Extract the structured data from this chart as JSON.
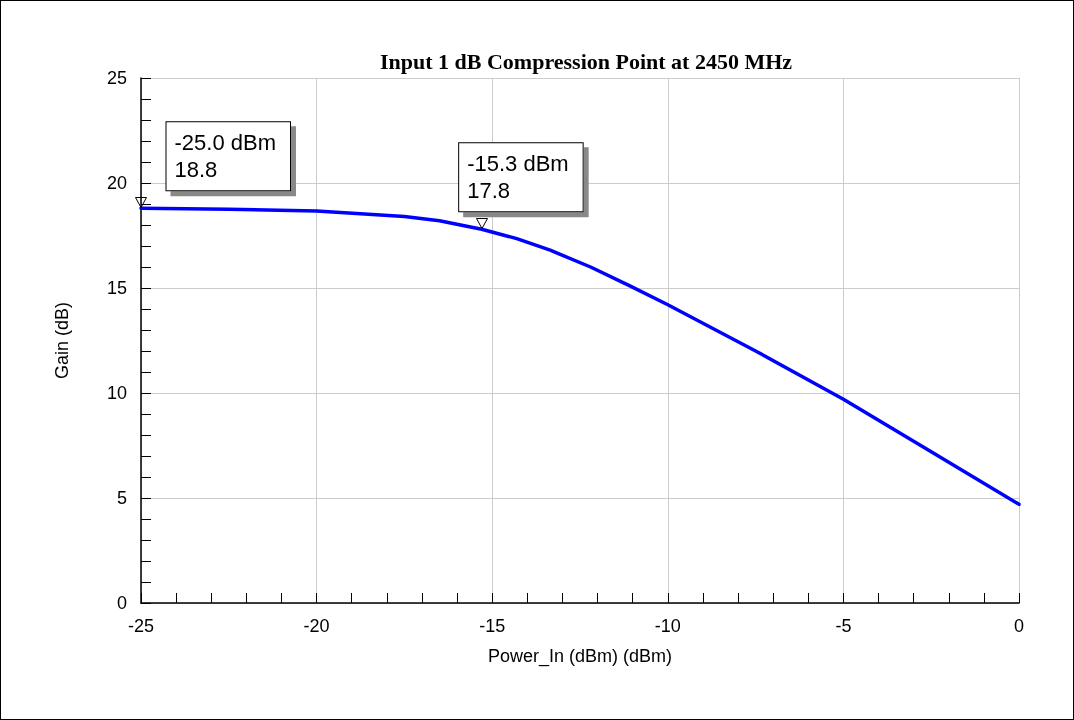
{
  "chart_data": {
    "type": "line",
    "title": "Input 1 dB Compression Point at 2450 MHz",
    "xlabel": "Power_In (dBm) (dBm)",
    "ylabel": "Gain (dB)",
    "x": [
      -25,
      -22.5,
      -20,
      -17.5,
      -16.5,
      -15.3,
      -14.3,
      -13.35,
      -12.2,
      -11.08,
      -10,
      -7.5,
      -5,
      -2.5,
      0
    ],
    "series": [
      {
        "color": "#0000ff",
        "values": [
          18.8,
          18.75,
          18.67,
          18.4,
          18.2,
          17.8,
          17.35,
          16.8,
          16.0,
          15.1,
          14.2,
          12.0,
          9.7,
          7.2,
          4.7
        ]
      }
    ],
    "xlim": [
      -25,
      0
    ],
    "xticks": [
      -25,
      -20,
      -15,
      -10,
      -5,
      0
    ],
    "ylim": [
      0,
      25
    ],
    "yticks": [
      0,
      5,
      10,
      15,
      20,
      25
    ],
    "grid": true,
    "marker": "none",
    "line_style": "solid",
    "annotations": [
      {
        "text": "-25.0 dBm\n18.8",
        "x": -25,
        "y": 18.8
      },
      {
        "text": "-15.3 dBm\n17.8",
        "x": -15.3,
        "y": 17.8
      }
    ]
  }
}
